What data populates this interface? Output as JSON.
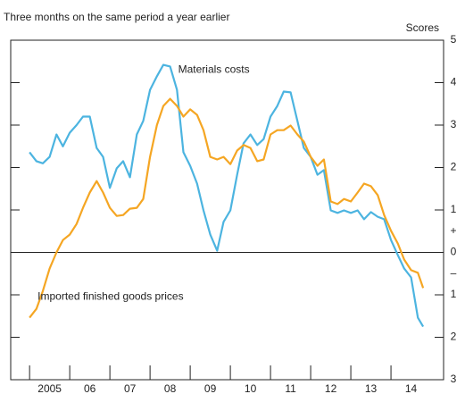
{
  "chart_data": {
    "type": "line",
    "title": "Three months on the same period a year earlier",
    "y_axis_label": "Scores",
    "plus_sign": "+",
    "minus_sign": "–",
    "xlim": [
      2004.53,
      2015.31
    ],
    "xticks": [
      {
        "value": 2005,
        "label": "2005"
      },
      {
        "value": 2006,
        "label": "06"
      },
      {
        "value": 2007,
        "label": "07"
      },
      {
        "value": 2008,
        "label": "08"
      },
      {
        "value": 2009,
        "label": "09"
      },
      {
        "value": 2010,
        "label": "10"
      },
      {
        "value": 2011,
        "label": "11"
      },
      {
        "value": 2012,
        "label": "12"
      },
      {
        "value": 2013,
        "label": "13"
      },
      {
        "value": 2014,
        "label": "14"
      }
    ],
    "ylim": [
      -3,
      5
    ],
    "yticks": [
      {
        "value": -3,
        "label": "3"
      },
      {
        "value": -2,
        "label": "2"
      },
      {
        "value": -1,
        "label": "1"
      },
      0,
      1,
      2,
      3,
      4,
      5
    ],
    "x": [
      2005,
      2005.17,
      2005.33,
      2005.5,
      2005.67,
      2005.83,
      2006,
      2006.17,
      2006.33,
      2006.5,
      2006.67,
      2006.83,
      2007,
      2007.17,
      2007.33,
      2007.5,
      2007.67,
      2007.83,
      2008,
      2008.17,
      2008.33,
      2008.5,
      2008.67,
      2008.83,
      2009,
      2009.17,
      2009.33,
      2009.5,
      2009.67,
      2009.83,
      2010,
      2010.17,
      2010.33,
      2010.5,
      2010.67,
      2010.83,
      2011,
      2011.17,
      2011.33,
      2011.5,
      2011.67,
      2011.83,
      2012,
      2012.17,
      2012.33,
      2012.5,
      2012.67,
      2012.83,
      2013,
      2013.17,
      2013.33,
      2013.5,
      2013.67,
      2013.83,
      2014,
      2014.17,
      2014.33,
      2014.5,
      2014.67,
      2014.8
    ],
    "series": [
      {
        "name": "Materials costs",
        "color": "#4cb4e0",
        "values": [
          2.36,
          2.15,
          2.1,
          2.25,
          2.78,
          2.5,
          2.82,
          3.0,
          3.2,
          3.2,
          2.46,
          2.25,
          1.52,
          1.98,
          2.15,
          1.77,
          2.78,
          3.1,
          3.83,
          4.15,
          4.42,
          4.38,
          3.83,
          2.36,
          2.04,
          1.62,
          0.99,
          0.42,
          0.04,
          0.72,
          0.99,
          1.83,
          2.57,
          2.78,
          2.53,
          2.67,
          3.2,
          3.45,
          3.79,
          3.77,
          3.1,
          2.46,
          2.25,
          1.83,
          1.94,
          0.99,
          0.93,
          0.99,
          0.93,
          0.99,
          0.78,
          0.95,
          0.84,
          0.78,
          0.29,
          -0.06,
          -0.38,
          -0.59,
          -1.54,
          -1.75
        ]
      },
      {
        "name": "Imported finished goods prices",
        "color": "#f5a623",
        "values": [
          -1.54,
          -1.33,
          -0.91,
          -0.38,
          0,
          0.29,
          0.42,
          0.67,
          1.05,
          1.41,
          1.68,
          1.41,
          1.05,
          0.86,
          0.88,
          1.03,
          1.05,
          1.26,
          2.25,
          3.0,
          3.45,
          3.62,
          3.45,
          3.2,
          3.37,
          3.24,
          2.88,
          2.25,
          2.19,
          2.25,
          2.08,
          2.4,
          2.53,
          2.46,
          2.15,
          2.19,
          2.78,
          2.88,
          2.88,
          2.99,
          2.78,
          2.61,
          2.25,
          2.04,
          2.19,
          1.2,
          1.14,
          1.26,
          1.2,
          1.41,
          1.62,
          1.56,
          1.35,
          0.88,
          0.51,
          0.21,
          -0.17,
          -0.42,
          -0.48,
          -0.84
        ]
      }
    ]
  }
}
